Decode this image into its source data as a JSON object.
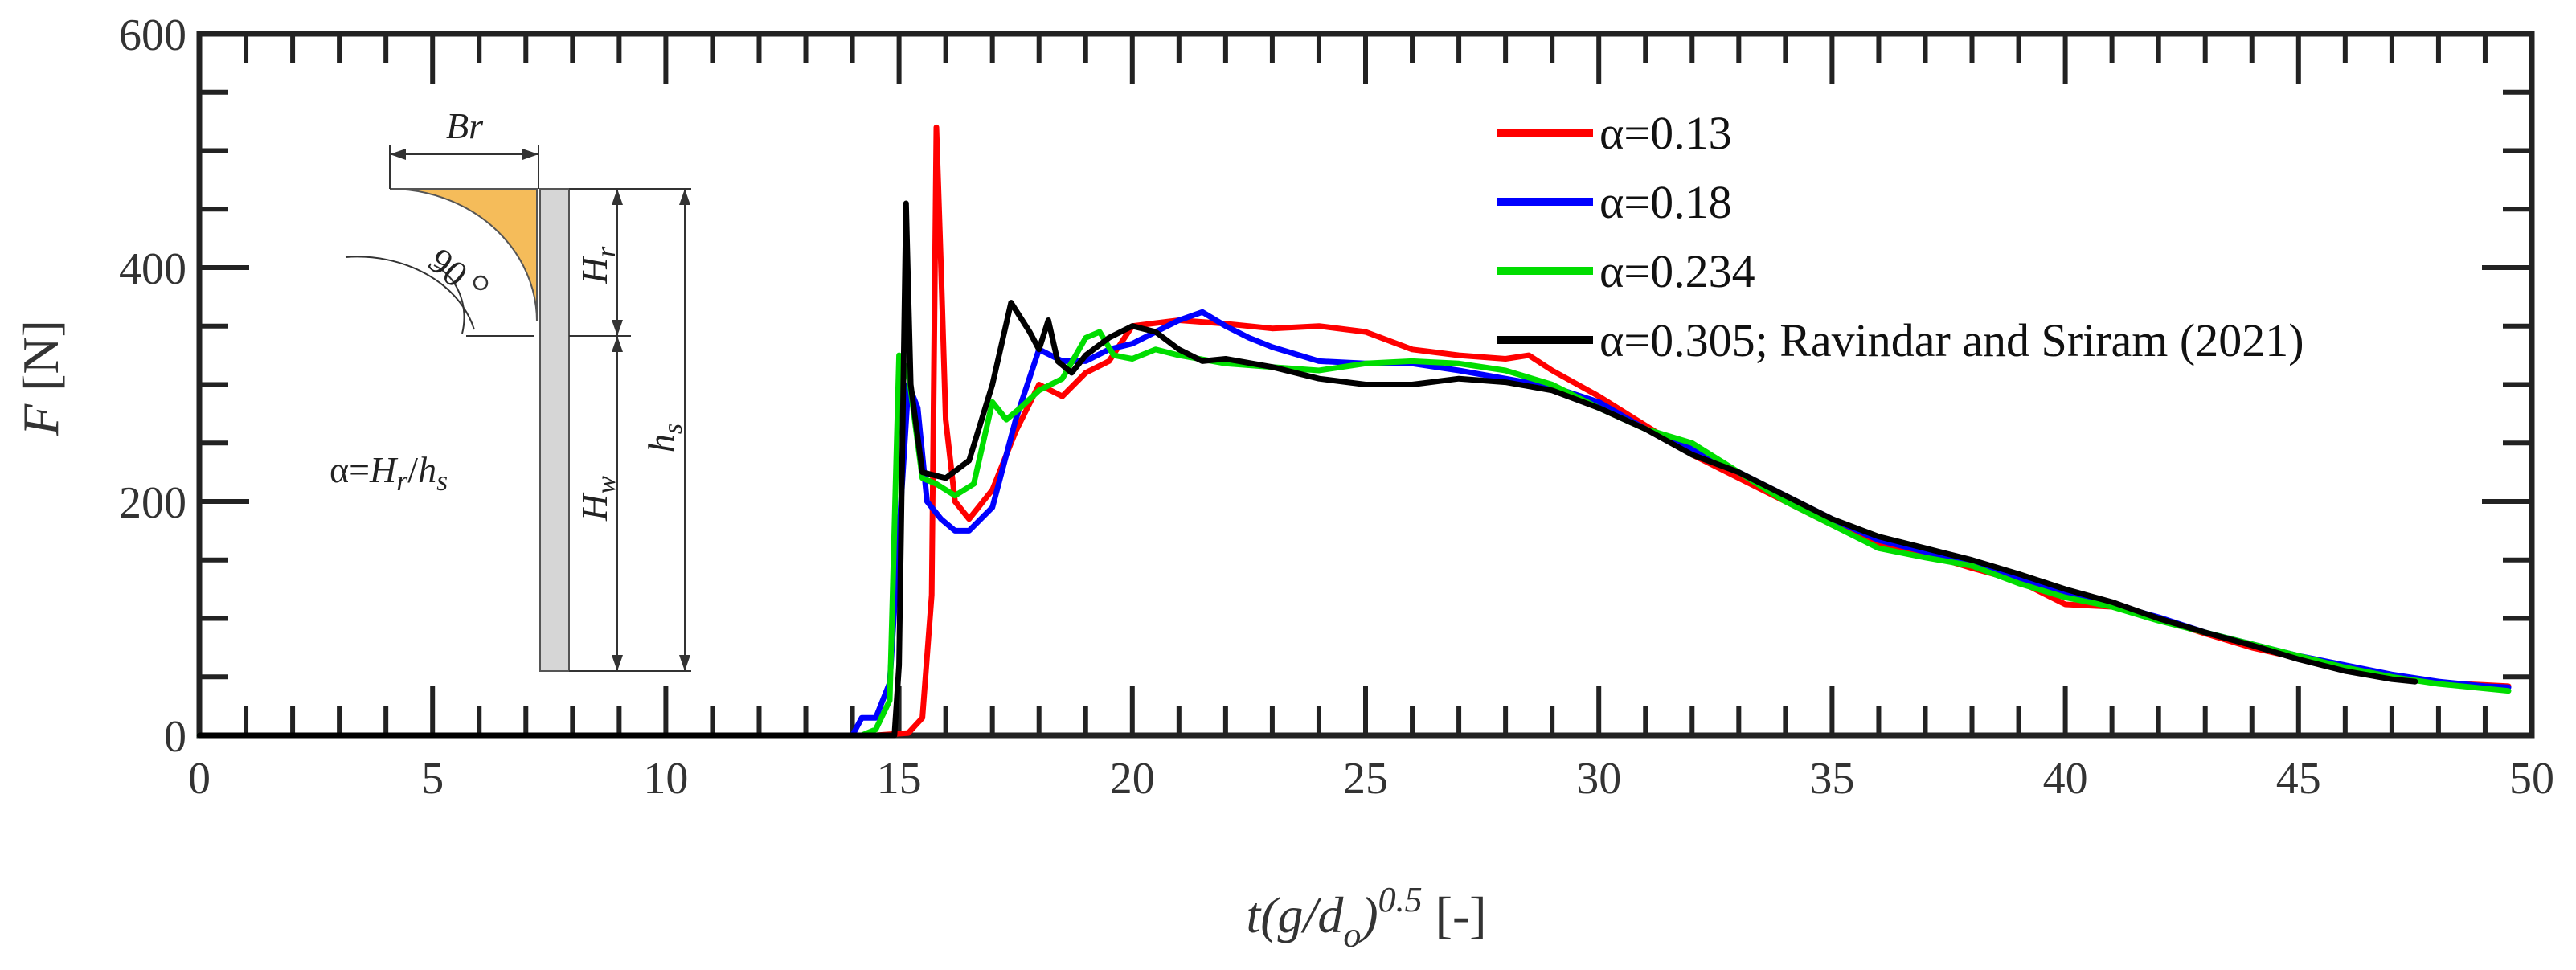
{
  "chart_data": {
    "type": "line",
    "xlabel": "t(g/d_o)^0.5 [-]",
    "xlabel_parts": {
      "base": "t(g/d",
      "sub": "o",
      "close": ")",
      "sup": "0.5",
      "unit": " [-]"
    },
    "ylabel": "F [N]",
    "ylabel_parts": {
      "var": "F",
      "unit": " [N]"
    },
    "xlim": [
      0,
      50
    ],
    "ylim": [
      0,
      600
    ],
    "xticks": [
      0,
      5,
      10,
      15,
      20,
      25,
      30,
      35,
      40,
      45,
      50
    ],
    "yticks": [
      0,
      200,
      400,
      600
    ],
    "grid": false,
    "legend_position": "top-right",
    "series": [
      {
        "name": "α=0.13",
        "color": "#ff0000",
        "points": [
          [
            0,
            0
          ],
          [
            5,
            0
          ],
          [
            10,
            0
          ],
          [
            14.5,
            0
          ],
          [
            15.2,
            2
          ],
          [
            15.5,
            15
          ],
          [
            15.7,
            120
          ],
          [
            15.8,
            520
          ],
          [
            15.9,
            400
          ],
          [
            16.0,
            270
          ],
          [
            16.2,
            200
          ],
          [
            16.5,
            185
          ],
          [
            17,
            210
          ],
          [
            17.5,
            260
          ],
          [
            18,
            300
          ],
          [
            18.5,
            290
          ],
          [
            19,
            310
          ],
          [
            19.5,
            320
          ],
          [
            20,
            350
          ],
          [
            21,
            355
          ],
          [
            22,
            352
          ],
          [
            23,
            348
          ],
          [
            24,
            350
          ],
          [
            25,
            345
          ],
          [
            26,
            330
          ],
          [
            27,
            325
          ],
          [
            28,
            322
          ],
          [
            28.5,
            325
          ],
          [
            29,
            312
          ],
          [
            30,
            290
          ],
          [
            31,
            265
          ],
          [
            32,
            240
          ],
          [
            33,
            220
          ],
          [
            34,
            200
          ],
          [
            35,
            180
          ],
          [
            36,
            163
          ],
          [
            37,
            155
          ],
          [
            38,
            143
          ],
          [
            39,
            132
          ],
          [
            40,
            112
          ],
          [
            41,
            110
          ],
          [
            42,
            100
          ],
          [
            43,
            87
          ],
          [
            44,
            75
          ],
          [
            45,
            66
          ],
          [
            46,
            58
          ],
          [
            47,
            50
          ],
          [
            48,
            45
          ],
          [
            49,
            43
          ],
          [
            49.5,
            42
          ]
        ]
      },
      {
        "name": "α=0.18",
        "color": "#0000ff",
        "points": [
          [
            0,
            0
          ],
          [
            5,
            0
          ],
          [
            10,
            0
          ],
          [
            14.0,
            0
          ],
          [
            14.2,
            15
          ],
          [
            14.5,
            15
          ],
          [
            14.8,
            45
          ],
          [
            15.2,
            300
          ],
          [
            15.4,
            280
          ],
          [
            15.6,
            200
          ],
          [
            15.9,
            185
          ],
          [
            16.2,
            175
          ],
          [
            16.5,
            175
          ],
          [
            17,
            195
          ],
          [
            17.5,
            270
          ],
          [
            18,
            330
          ],
          [
            18.5,
            320
          ],
          [
            19,
            320
          ],
          [
            19.5,
            330
          ],
          [
            20,
            335
          ],
          [
            20.5,
            345
          ],
          [
            21,
            355
          ],
          [
            21.5,
            362
          ],
          [
            22,
            350
          ],
          [
            22.5,
            340
          ],
          [
            23,
            332
          ],
          [
            24,
            320
          ],
          [
            25,
            318
          ],
          [
            26,
            318
          ],
          [
            27,
            312
          ],
          [
            28,
            305
          ],
          [
            29,
            298
          ],
          [
            30,
            285
          ],
          [
            31,
            262
          ],
          [
            32,
            245
          ],
          [
            33,
            225
          ],
          [
            34,
            205
          ],
          [
            35,
            185
          ],
          [
            36,
            167
          ],
          [
            37,
            157
          ],
          [
            38,
            146
          ],
          [
            39,
            135
          ],
          [
            40,
            122
          ],
          [
            41,
            112
          ],
          [
            42,
            101
          ],
          [
            43,
            88
          ],
          [
            44,
            78
          ],
          [
            45,
            68
          ],
          [
            46,
            60
          ],
          [
            47,
            52
          ],
          [
            48,
            46
          ],
          [
            49,
            42
          ],
          [
            49.5,
            41
          ]
        ]
      },
      {
        "name": "α=0.234",
        "color": "#00dd00",
        "points": [
          [
            0,
            0
          ],
          [
            5,
            0
          ],
          [
            10,
            0
          ],
          [
            14.2,
            0
          ],
          [
            14.5,
            5
          ],
          [
            14.8,
            30
          ],
          [
            15.0,
            325
          ],
          [
            15.2,
            310
          ],
          [
            15.5,
            220
          ],
          [
            15.8,
            215
          ],
          [
            16.2,
            205
          ],
          [
            16.6,
            215
          ],
          [
            17,
            285
          ],
          [
            17.3,
            270
          ],
          [
            17.6,
            280
          ],
          [
            18,
            295
          ],
          [
            18.5,
            305
          ],
          [
            19,
            340
          ],
          [
            19.3,
            345
          ],
          [
            19.6,
            325
          ],
          [
            20,
            322
          ],
          [
            20.5,
            330
          ],
          [
            21,
            325
          ],
          [
            22,
            318
          ],
          [
            23,
            315
          ],
          [
            24,
            312
          ],
          [
            25,
            318
          ],
          [
            26,
            320
          ],
          [
            27,
            318
          ],
          [
            28,
            312
          ],
          [
            29,
            300
          ],
          [
            30,
            280
          ],
          [
            31,
            262
          ],
          [
            32,
            250
          ],
          [
            33,
            225
          ],
          [
            34,
            200
          ],
          [
            35,
            180
          ],
          [
            36,
            160
          ],
          [
            37,
            152
          ],
          [
            38,
            145
          ],
          [
            39,
            130
          ],
          [
            40,
            118
          ],
          [
            41,
            110
          ],
          [
            42,
            98
          ],
          [
            43,
            88
          ],
          [
            44,
            78
          ],
          [
            45,
            68
          ],
          [
            46,
            58
          ],
          [
            47,
            50
          ],
          [
            48,
            44
          ],
          [
            49,
            40
          ],
          [
            49.5,
            38
          ]
        ]
      },
      {
        "name": "α=0.305; Ravindar and Sriram (2021)",
        "color": "#000000",
        "points": [
          [
            0,
            0
          ],
          [
            5,
            0
          ],
          [
            10,
            0
          ],
          [
            14.9,
            0
          ],
          [
            15.0,
            60
          ],
          [
            15.15,
            455
          ],
          [
            15.25,
            300
          ],
          [
            15.5,
            225
          ],
          [
            16,
            220
          ],
          [
            16.5,
            235
          ],
          [
            17,
            300
          ],
          [
            17.4,
            370
          ],
          [
            17.8,
            345
          ],
          [
            18,
            330
          ],
          [
            18.2,
            355
          ],
          [
            18.4,
            320
          ],
          [
            18.7,
            310
          ],
          [
            19,
            325
          ],
          [
            19.5,
            340
          ],
          [
            20,
            350
          ],
          [
            20.5,
            345
          ],
          [
            21,
            330
          ],
          [
            21.5,
            320
          ],
          [
            22,
            322
          ],
          [
            23,
            315
          ],
          [
            24,
            305
          ],
          [
            25,
            300
          ],
          [
            26,
            300
          ],
          [
            27,
            305
          ],
          [
            28,
            302
          ],
          [
            29,
            295
          ],
          [
            30,
            280
          ],
          [
            31,
            262
          ],
          [
            32,
            240
          ],
          [
            33,
            225
          ],
          [
            34,
            205
          ],
          [
            35,
            185
          ],
          [
            36,
            170
          ],
          [
            37,
            160
          ],
          [
            38,
            150
          ],
          [
            39,
            138
          ],
          [
            40,
            125
          ],
          [
            41,
            114
          ],
          [
            42,
            100
          ],
          [
            43,
            88
          ],
          [
            44,
            77
          ],
          [
            45,
            65
          ],
          [
            46,
            55
          ],
          [
            47,
            48
          ],
          [
            47.5,
            46
          ]
        ]
      }
    ],
    "inset": {
      "labels": {
        "br": "Br",
        "angle": "90",
        "hr": "H",
        "hr_sub": "r",
        "hw": "H",
        "hw_sub": "w",
        "hs": "h",
        "hs_sub": "s",
        "alpha_prefix": "α=",
        "alpha_h": "H",
        "alpha_h_sub": "r",
        "alpha_slash": "/",
        "alpha_s": "h",
        "alpha_s_sub": "s"
      },
      "colors": {
        "reservoir": "#f5bc5a",
        "wall": "#d6d6d6"
      }
    }
  }
}
